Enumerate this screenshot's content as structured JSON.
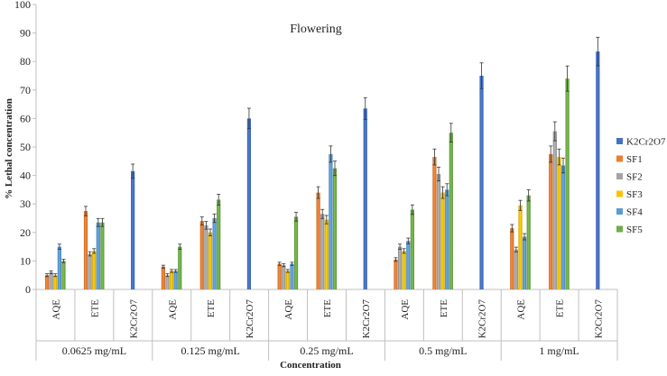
{
  "chart_data": {
    "type": "bar",
    "title": "Flowering",
    "ylabel": "% Lethal concentration",
    "xlabel": "Concentration",
    "ylim": [
      0,
      100
    ],
    "yticks": [
      0,
      10,
      20,
      30,
      40,
      50,
      60,
      70,
      80,
      90,
      100
    ],
    "grid": false,
    "legend_position": "right",
    "groups": [
      "0.0625 mg/mL",
      "0.125 mg/mL",
      "0.25 mg/mL",
      "0.5 mg/mL",
      "1 mg/mL"
    ],
    "subcategories": [
      "AQE",
      "ETE",
      "K2Cr2O7"
    ],
    "legend": [
      {
        "name": "K2Cr2O7",
        "color": "#4472C4"
      },
      {
        "name": "SF1",
        "color": "#ED7D31"
      },
      {
        "name": "SF2",
        "color": "#A5A5A5"
      },
      {
        "name": "SF3",
        "color": "#FFC000"
      },
      {
        "name": "SF4",
        "color": "#5B9BD5"
      },
      {
        "name": "SF5",
        "color": "#70AD47"
      }
    ],
    "data": [
      {
        "group": "0.0625 mg/mL",
        "AQE": {
          "SF1": 5,
          "SF2": 6,
          "SF3": 5,
          "SF4": 15,
          "SF5": 10
        },
        "ETE": {
          "SF1": 27.5,
          "SF2": 12.5,
          "SF3": 13.5,
          "SF4": 23.5,
          "SF5": 23.5
        },
        "K2Cr2O7": {
          "K2Cr2O7": 41.5
        }
      },
      {
        "group": "0.125 mg/mL",
        "AQE": {
          "SF1": 8,
          "SF2": 5,
          "SF3": 6.5,
          "SF4": 6.5,
          "SF5": 15
        },
        "ETE": {
          "SF1": 24,
          "SF2": 22.5,
          "SF3": 20,
          "SF4": 25,
          "SF5": 31.5
        },
        "K2Cr2O7": {
          "K2Cr2O7": 60
        }
      },
      {
        "group": "0.25 mg/mL",
        "AQE": {
          "SF1": 9,
          "SF2": 8.5,
          "SF3": 6.5,
          "SF4": 9,
          "SF5": 25.5
        },
        "ETE": {
          "SF1": 34,
          "SF2": 26.5,
          "SF3": 24.5,
          "SF4": 47.5,
          "SF5": 42.5
        },
        "K2Cr2O7": {
          "K2Cr2O7": 63.5
        }
      },
      {
        "group": "0.5 mg/mL",
        "AQE": {
          "SF1": 10.5,
          "SF2": 15,
          "SF3": 13.5,
          "SF4": 17,
          "SF5": 28
        },
        "ETE": {
          "SF1": 46.5,
          "SF2": 40.5,
          "SF3": 34,
          "SF4": 35,
          "SF5": 55
        },
        "K2Cr2O7": {
          "K2Cr2O7": 75
        }
      },
      {
        "group": "1 mg/mL",
        "AQE": {
          "SF1": 21.5,
          "SF2": 14,
          "SF3": 29.5,
          "SF4": 18.5,
          "SF5": 33
        },
        "ETE": {
          "SF1": 47.5,
          "SF2": 55.5,
          "SF3": 46.5,
          "SF4": 43.5,
          "SF5": 74
        },
        "K2Cr2O7": {
          "K2Cr2O7": 83.5
        }
      }
    ]
  }
}
